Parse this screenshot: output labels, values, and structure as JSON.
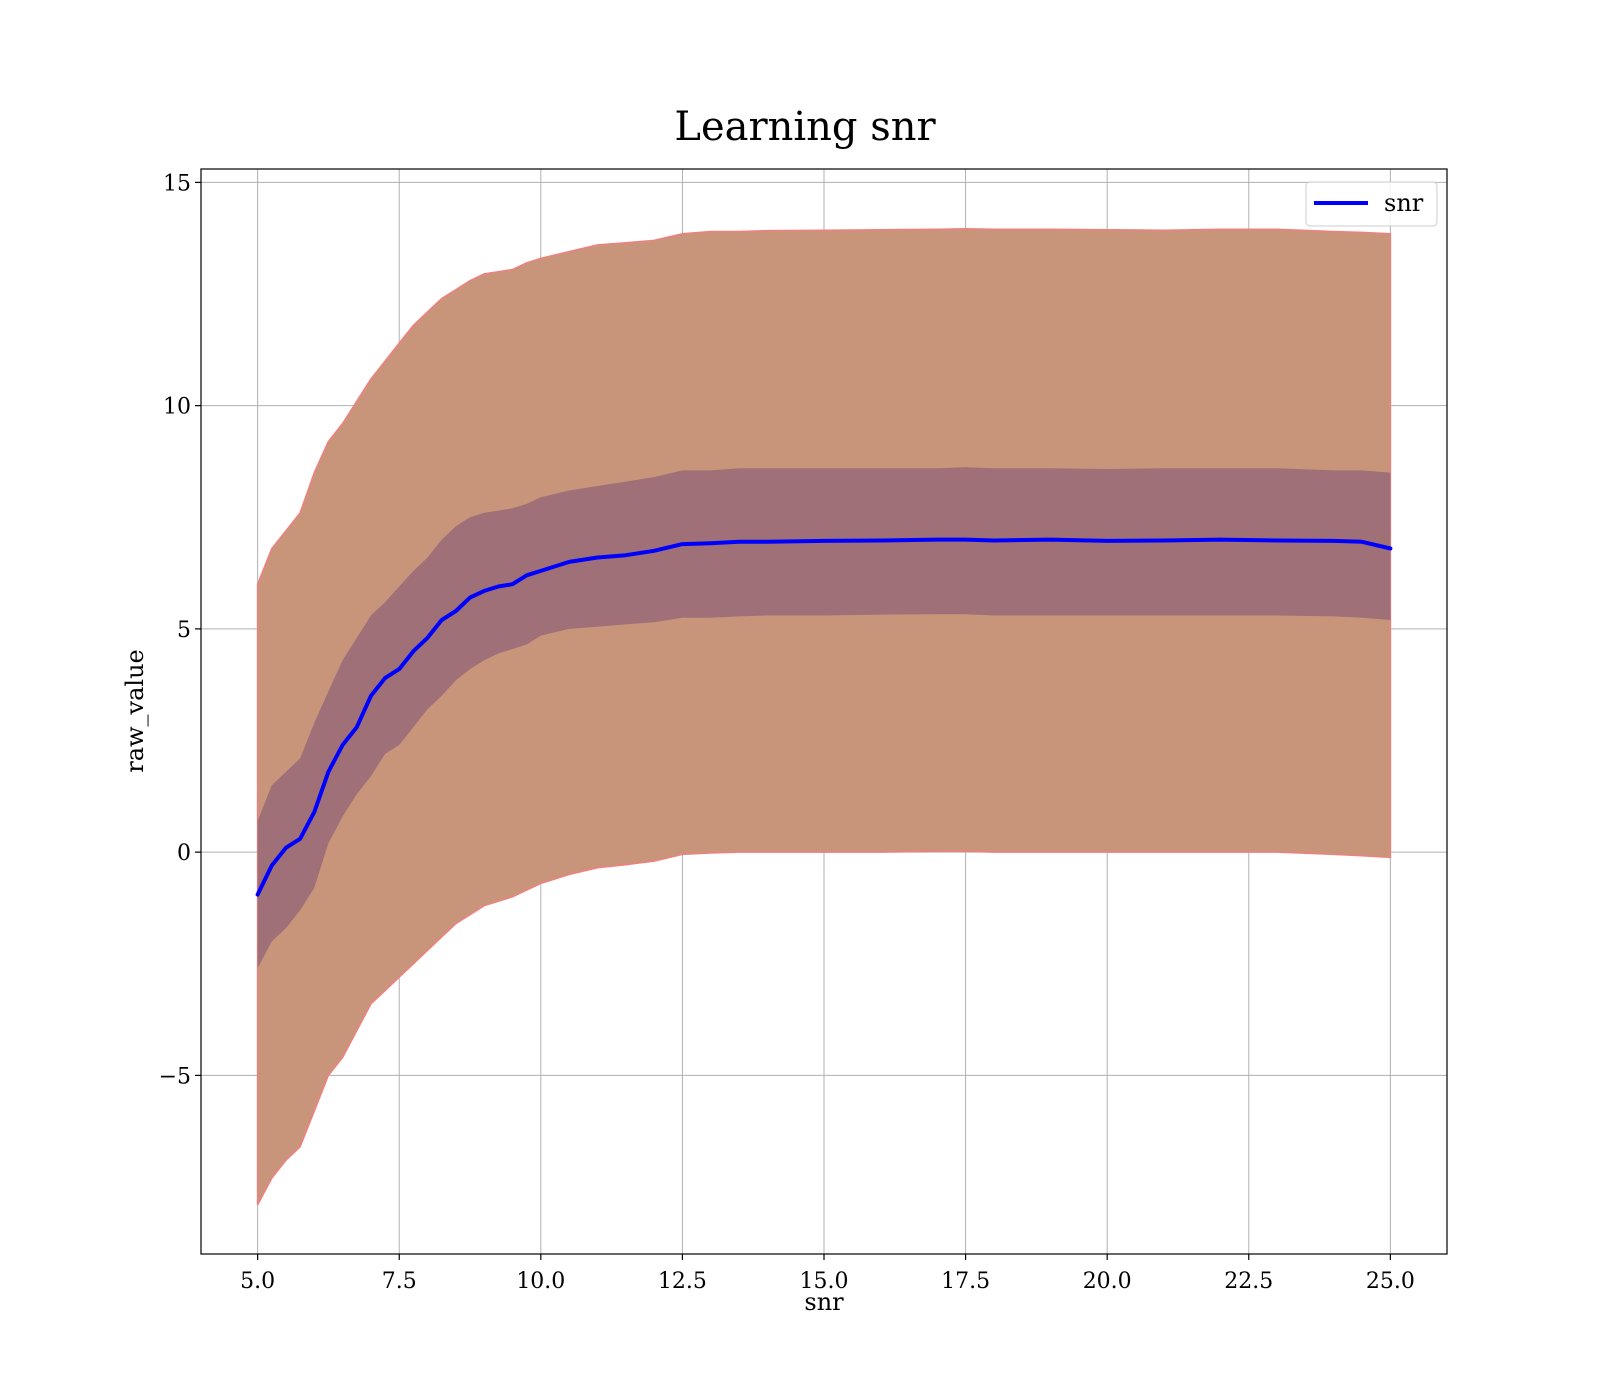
{
  "chart_data": {
    "type": "line",
    "title": "Learning snr",
    "xlabel": "snr",
    "ylabel": "raw_value",
    "xlim": [
      4.0,
      26.0
    ],
    "ylim": [
      -9.0,
      15.3
    ],
    "xticks": [
      5.0,
      7.5,
      10.0,
      12.5,
      15.0,
      17.5,
      20.0,
      22.5,
      25.0
    ],
    "xtick_labels": [
      "5.0",
      "7.5",
      "10.0",
      "12.5",
      "15.0",
      "17.5",
      "20.0",
      "22.5",
      "25.0"
    ],
    "yticks": [
      -5,
      0,
      5,
      10,
      15
    ],
    "ytick_labels": [
      "−5",
      "0",
      "5",
      "10",
      "15"
    ],
    "grid": true,
    "legend": {
      "position": "top-right",
      "entries": [
        "snr"
      ]
    },
    "colors": {
      "line": "#0000ff",
      "outer_band": "#c8957a",
      "outer_band_edge": "#f08080",
      "inner_band": "#a07078"
    },
    "x": [
      5.0,
      5.25,
      5.5,
      5.75,
      6.0,
      6.25,
      6.5,
      6.75,
      7.0,
      7.25,
      7.5,
      7.75,
      8.0,
      8.25,
      8.5,
      8.75,
      9.0,
      9.25,
      9.5,
      9.75,
      10.0,
      10.5,
      11.0,
      11.5,
      12.0,
      12.5,
      13.0,
      13.5,
      14.0,
      15.0,
      16.0,
      17.0,
      17.5,
      18.0,
      19.0,
      20.0,
      21.0,
      22.0,
      23.0,
      24.0,
      24.5,
      25.0
    ],
    "series": [
      {
        "name": "snr",
        "values": [
          -0.95,
          -0.3,
          0.1,
          0.3,
          0.9,
          1.8,
          2.4,
          2.8,
          3.5,
          3.9,
          4.1,
          4.5,
          4.8,
          5.2,
          5.4,
          5.7,
          5.85,
          5.95,
          6.0,
          6.2,
          6.3,
          6.5,
          6.6,
          6.65,
          6.75,
          6.9,
          6.92,
          6.95,
          6.95,
          6.97,
          6.98,
          7.0,
          7.0,
          6.98,
          7.0,
          6.97,
          6.98,
          7.0,
          6.98,
          6.97,
          6.95,
          6.8
        ]
      }
    ],
    "inner_band": {
      "upper": [
        0.7,
        1.5,
        1.8,
        2.1,
        2.9,
        3.6,
        4.3,
        4.8,
        5.3,
        5.6,
        5.95,
        6.3,
        6.6,
        7.0,
        7.3,
        7.5,
        7.6,
        7.65,
        7.7,
        7.8,
        7.95,
        8.1,
        8.2,
        8.3,
        8.4,
        8.55,
        8.55,
        8.6,
        8.6,
        8.6,
        8.6,
        8.6,
        8.62,
        8.6,
        8.6,
        8.58,
        8.6,
        8.6,
        8.6,
        8.55,
        8.55,
        8.5
      ],
      "lower": [
        -2.6,
        -2.0,
        -1.7,
        -1.3,
        -0.8,
        0.2,
        0.8,
        1.3,
        1.7,
        2.2,
        2.4,
        2.8,
        3.2,
        3.5,
        3.85,
        4.1,
        4.3,
        4.45,
        4.55,
        4.65,
        4.85,
        5.0,
        5.05,
        5.1,
        5.15,
        5.25,
        5.25,
        5.28,
        5.3,
        5.3,
        5.32,
        5.33,
        5.33,
        5.3,
        5.3,
        5.3,
        5.3,
        5.3,
        5.3,
        5.28,
        5.25,
        5.2
      ]
    },
    "outer_band": {
      "upper": [
        6.0,
        6.8,
        7.2,
        7.6,
        8.5,
        9.2,
        9.6,
        10.1,
        10.6,
        11.0,
        11.4,
        11.8,
        12.1,
        12.4,
        12.6,
        12.8,
        12.95,
        13.0,
        13.05,
        13.2,
        13.3,
        13.45,
        13.6,
        13.65,
        13.7,
        13.85,
        13.9,
        13.9,
        13.92,
        13.93,
        13.94,
        13.95,
        13.96,
        13.95,
        13.95,
        13.94,
        13.93,
        13.95,
        13.95,
        13.9,
        13.88,
        13.85
      ],
      "lower": [
        -7.9,
        -7.3,
        -6.9,
        -6.6,
        -5.8,
        -5.0,
        -4.6,
        -4.0,
        -3.4,
        -3.1,
        -2.8,
        -2.5,
        -2.2,
        -1.9,
        -1.6,
        -1.4,
        -1.2,
        -1.1,
        -1.0,
        -0.85,
        -0.7,
        -0.5,
        -0.35,
        -0.28,
        -0.2,
        -0.05,
        -0.02,
        0.0,
        0.0,
        0.0,
        0.0,
        0.02,
        0.02,
        0.0,
        0.0,
        0.0,
        0.0,
        0.0,
        0.0,
        -0.05,
        -0.08,
        -0.12
      ]
    }
  }
}
